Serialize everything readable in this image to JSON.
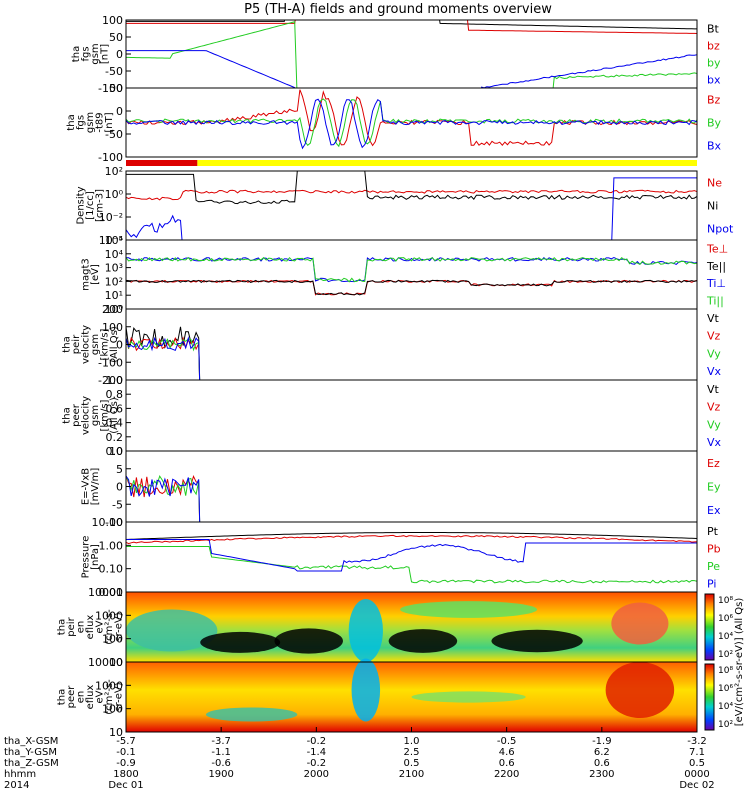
{
  "figure": {
    "title": "P5 (TH-A) fields and ground moments overview"
  },
  "chart_data": [
    {
      "type": "line",
      "name": "fgs-gsm",
      "ylabel_lines": [
        "tha",
        "fgs",
        "gsm",
        "[nT]"
      ],
      "ylim": [
        -100,
        100
      ],
      "yticks": [
        "100",
        "50",
        "0",
        "-50",
        "-100"
      ],
      "series": [
        {
          "name": "Bt",
          "color": "#000000"
        },
        {
          "name": "bz",
          "color": "#dd0000"
        },
        {
          "name": "by",
          "color": "#22cc22"
        },
        {
          "name": "bx",
          "color": "#0000ee"
        }
      ]
    },
    {
      "type": "line",
      "name": "fgs-gsm-t89",
      "ylabel_lines": [
        "tha",
        "fgs",
        "gsm",
        "-t89",
        "[nT]"
      ],
      "ylim": [
        -120,
        80
      ],
      "yticks": [
        "50",
        "0",
        "-50",
        "-100"
      ],
      "series": [
        {
          "name": "Bz",
          "color": "#dd0000"
        },
        {
          "name": "By",
          "color": "#22cc22"
        },
        {
          "name": "Bx",
          "color": "#0000ee"
        }
      ]
    },
    {
      "type": "line",
      "name": "density",
      "ylabel_lines": [
        "Density",
        "[1/cc]",
        "[cm-3]"
      ],
      "yscale": "log",
      "ylim": [
        0.0001,
        100
      ],
      "yticks": [
        "10²",
        "10⁰",
        "10⁻²",
        "10⁻⁴"
      ],
      "series": [
        {
          "name": "Ne",
          "color": "#dd0000"
        },
        {
          "name": "Ni",
          "color": "#000000"
        },
        {
          "name": "Npot",
          "color": "#0000ee"
        }
      ]
    },
    {
      "type": "line",
      "name": "temperature",
      "ylabel_lines": [
        "magt3",
        "[eV]"
      ],
      "yscale": "log",
      "ylim": [
        1,
        100000
      ],
      "yticks": [
        "10⁵",
        "10⁴",
        "10³",
        "10²",
        "10¹",
        "10⁰"
      ],
      "series": [
        {
          "name": "Te⊥",
          "color": "#dd0000"
        },
        {
          "name": "Te||",
          "color": "#000000"
        },
        {
          "name": "Ti⊥",
          "color": "#0000ee"
        },
        {
          "name": "Ti||",
          "color": "#22cc22"
        }
      ]
    },
    {
      "type": "line",
      "name": "peir-velocity",
      "ylabel_lines": [
        "tha",
        "peir",
        "velocity",
        "gsm",
        "[km/s]",
        "(All Qs)"
      ],
      "ylim": [
        -200,
        200
      ],
      "yticks": [
        "200",
        "100",
        "0",
        "-100",
        "-200"
      ],
      "series": [
        {
          "name": "Vt",
          "color": "#000000"
        },
        {
          "name": "Vz",
          "color": "#dd0000"
        },
        {
          "name": "Vy",
          "color": "#22cc22"
        },
        {
          "name": "Vx",
          "color": "#0000ee"
        }
      ]
    },
    {
      "type": "line",
      "name": "peer-velocity",
      "ylabel_lines": [
        "tha",
        "peer",
        "velocity",
        "gsm",
        "[km/s]",
        "(All Qs)"
      ],
      "ylim": [
        0,
        1
      ],
      "yticks": [
        "1.0",
        "0.8",
        "0.6",
        "0.4",
        "0.2",
        "0.0"
      ],
      "series": [
        {
          "name": "Vt",
          "color": "#000000"
        },
        {
          "name": "Vz",
          "color": "#dd0000"
        },
        {
          "name": "Vy",
          "color": "#22cc22"
        },
        {
          "name": "Vx",
          "color": "#0000ee"
        }
      ]
    },
    {
      "type": "line",
      "name": "efield",
      "ylabel_lines": [
        "E=-VxB",
        "[mV/m]"
      ],
      "ylim": [
        -10,
        10
      ],
      "yticks": [
        "10",
        "5",
        "0",
        "-5",
        "-10"
      ],
      "series": [
        {
          "name": "Ez",
          "color": "#dd0000"
        },
        {
          "name": "Ey",
          "color": "#22cc22"
        },
        {
          "name": "Ex",
          "color": "#0000ee"
        }
      ]
    },
    {
      "type": "line",
      "name": "pressure",
      "ylabel_lines": [
        "Pressure",
        "[nPa]"
      ],
      "yscale": "log",
      "ylim": [
        0.001,
        20
      ],
      "yticks": [
        "10.00",
        "1.00",
        "0.10",
        "0.01"
      ],
      "series": [
        {
          "name": "Pt",
          "color": "#000000"
        },
        {
          "name": "Pb",
          "color": "#dd0000"
        },
        {
          "name": "Pe",
          "color": "#22cc22"
        },
        {
          "name": "Pi",
          "color": "#0000ee"
        }
      ]
    },
    {
      "type": "heatmap",
      "name": "peir-en-eflux",
      "ylabel_lines": [
        "tha",
        "peir",
        "en",
        "eflux",
        "eV",
        "(cm²-s-",
        "sr-eV)"
      ],
      "yscale": "log",
      "ylim": [
        5,
        30000
      ],
      "yticks": [
        "10000",
        "1000",
        "100",
        "10"
      ]
    },
    {
      "type": "heatmap",
      "name": "peer-en-eflux",
      "ylabel_lines": [
        "tha",
        "peer",
        "en",
        "eflux",
        "eV",
        "(cm²-s-",
        "sr-eV)"
      ],
      "yscale": "log",
      "ylim": [
        5,
        30000
      ],
      "yticks": [
        "10000",
        "1000",
        "100",
        "10"
      ]
    }
  ],
  "colorbar": {
    "label": "[eV/(cm²-s-sr-eV)]",
    "label2": "[eV/(cm²-s-sr-eV)]  (All Qs)",
    "ticks": [
      "10⁸",
      "10⁶",
      "10⁴",
      "10²"
    ]
  },
  "xaxis": {
    "row_labels": [
      "tha_X-GSM",
      "tha_Y-GSM",
      "tha_Z-GSM",
      "hhmm",
      "2014"
    ],
    "columns": [
      {
        "vals": [
          "-5.7",
          "-0.1",
          "-0.9",
          "1800",
          "Dec 01"
        ]
      },
      {
        "vals": [
          "-3.7",
          "-1.1",
          "-0.6",
          "1900",
          ""
        ]
      },
      {
        "vals": [
          "-0.2",
          "-1.4",
          "-0.2",
          "2000",
          ""
        ]
      },
      {
        "vals": [
          "1.0",
          "2.5",
          "0.5",
          "2100",
          ""
        ]
      },
      {
        "vals": [
          "-0.5",
          "4.6",
          "0.6",
          "2200",
          ""
        ]
      },
      {
        "vals": [
          "-1.9",
          "6.2",
          "0.6",
          "2300",
          ""
        ]
      },
      {
        "vals": [
          "-3.2",
          "7.1",
          "0.5",
          "0000",
          "Dec 02"
        ]
      }
    ]
  },
  "colors": {
    "mode_bar_red": "#dd0000",
    "mode_bar_yellow": "#ffff00"
  }
}
